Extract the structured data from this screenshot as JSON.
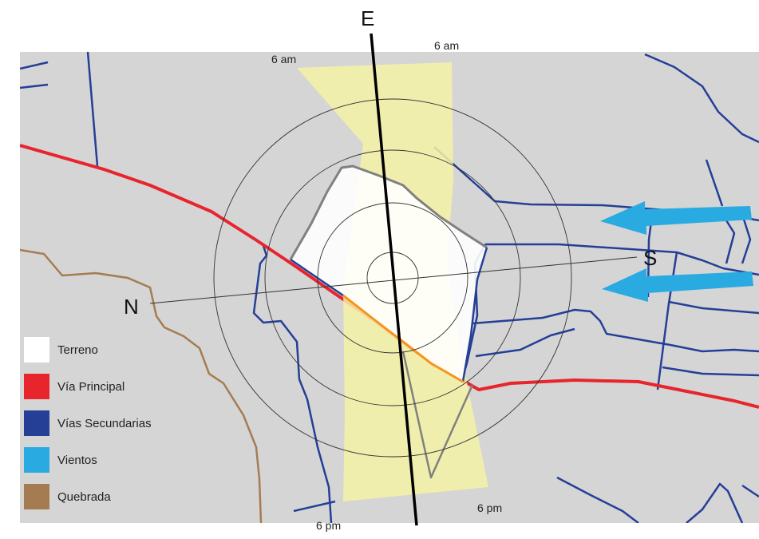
{
  "labels": {
    "north": "N",
    "south": "S",
    "east": "E",
    "sun_times": [
      "6 am",
      "6 am",
      "6 pm",
      "6 pm"
    ]
  },
  "legend": [
    {
      "key": "terrain",
      "label": "Terreno",
      "color": "#ffffff"
    },
    {
      "key": "main-road",
      "label": "Vía Principal",
      "color": "#e8242c"
    },
    {
      "key": "secondary-roads",
      "label": "Vías Secundarias",
      "color": "#253f97"
    },
    {
      "key": "winds",
      "label": "Vientos",
      "color": "#29abe2"
    },
    {
      "key": "creek",
      "label": "Quebrada",
      "color": "#a57c52"
    }
  ],
  "colors": {
    "map_background": "#d5d5d5",
    "sun_path": "#f5f2a6",
    "site_outline": "#808080",
    "orbit_circles": "#333333"
  }
}
